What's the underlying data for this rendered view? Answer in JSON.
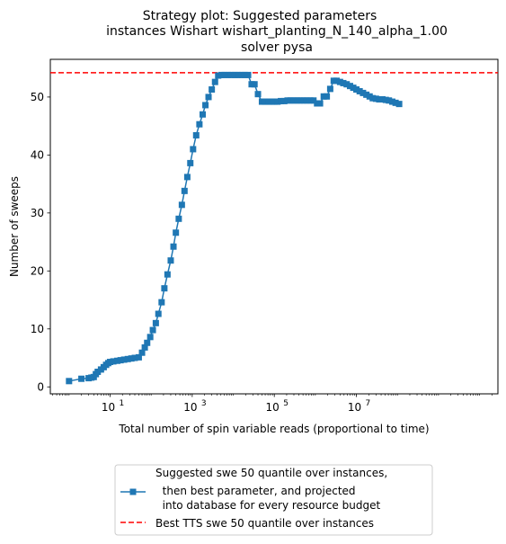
{
  "chart_data": {
    "type": "line",
    "title_lines": [
      "Strategy plot: Suggested parameters",
      "instances Wishart wishart_planting_N_140_alpha_1.00",
      "solver pysa"
    ],
    "xlabel": "Total number of spin variable reads (proportional to time)",
    "ylabel": "Number of sweeps",
    "x_scale": "log",
    "xlim": [
      0.35,
      28000000000
    ],
    "ylim": [
      -1.2,
      56.5
    ],
    "x_tick_values": [
      10,
      1000,
      100000,
      10000000
    ],
    "x_tick_bases": [
      "10",
      "10",
      "10",
      "10"
    ],
    "x_tick_exponents": [
      "1",
      "3",
      "5",
      "7"
    ],
    "y_ticks": [
      0,
      10,
      20,
      30,
      40,
      50
    ],
    "y_tick_labels": [
      "0",
      "10",
      "20",
      "30",
      "40",
      "50"
    ],
    "grid": false,
    "legend_position": "below",
    "series": [
      {
        "name_lines": [
          "Suggested swe 50 quantile over instances,",
          "  then best parameter, and projected",
          "  into database for every resource budget"
        ],
        "color": "#1f77b4",
        "marker": "square",
        "linestyle": "solid",
        "x": [
          1,
          2,
          3,
          3.5,
          4,
          4.5,
          5,
          6,
          7,
          8,
          9,
          10,
          12,
          15,
          18,
          22,
          27,
          33,
          40,
          50,
          60,
          70,
          80,
          95,
          110,
          130,
          150,
          180,
          210,
          250,
          300,
          350,
          400,
          470,
          560,
          650,
          760,
          900,
          1050,
          1250,
          1500,
          1800,
          2100,
          2500,
          3000,
          3600,
          4300,
          5200,
          6200,
          7500,
          9000,
          11000,
          13000,
          16000,
          19000,
          23000,
          28000,
          33000,
          40000,
          50000,
          60000,
          72000,
          86000,
          100000,
          120000,
          145000,
          175000,
          210000,
          250000,
          300000,
          360000,
          430000,
          520000,
          620000,
          750000,
          900000,
          1100000,
          1300000,
          1600000,
          1900000,
          2300000,
          2800000,
          3300000,
          4000000,
          4800000,
          5800000,
          7000000,
          8400000,
          10000000,
          12000000,
          14500000,
          17500000,
          21000000,
          25000000,
          30000000,
          36000000,
          43000000,
          52000000,
          62000000,
          75000000,
          90000000,
          110000000
        ],
        "y": [
          1.0,
          1.4,
          1.5,
          1.6,
          1.7,
          2.2,
          2.6,
          3.0,
          3.4,
          3.8,
          4.1,
          4.3,
          4.4,
          4.5,
          4.6,
          4.7,
          4.8,
          4.9,
          5.0,
          5.1,
          5.9,
          6.8,
          7.6,
          8.6,
          9.8,
          11.0,
          12.6,
          14.6,
          17.0,
          19.4,
          21.8,
          24.2,
          26.6,
          29.0,
          31.4,
          33.8,
          36.2,
          38.6,
          41.0,
          43.4,
          45.3,
          47.0,
          48.6,
          50.0,
          51.3,
          52.6,
          53.7,
          53.8,
          53.8,
          53.8,
          53.8,
          53.8,
          53.8,
          53.8,
          53.8,
          53.8,
          52.2,
          52.2,
          50.5,
          49.2,
          49.2,
          49.2,
          49.2,
          49.2,
          49.2,
          49.3,
          49.3,
          49.4,
          49.4,
          49.4,
          49.4,
          49.4,
          49.4,
          49.4,
          49.4,
          49.4,
          48.9,
          48.9,
          50.1,
          50.1,
          51.4,
          52.8,
          52.8,
          52.6,
          52.4,
          52.2,
          51.9,
          51.6,
          51.3,
          51.0,
          50.7,
          50.4,
          50.1,
          49.8,
          49.7,
          49.6,
          49.6,
          49.5,
          49.4,
          49.2,
          49.0,
          48.8
        ]
      },
      {
        "name_lines": [
          "Best TTS swe 50 quantile over instances"
        ],
        "color": "#ff0000",
        "marker": "none",
        "linestyle": "dashed",
        "y_const": 54.2
      }
    ]
  }
}
